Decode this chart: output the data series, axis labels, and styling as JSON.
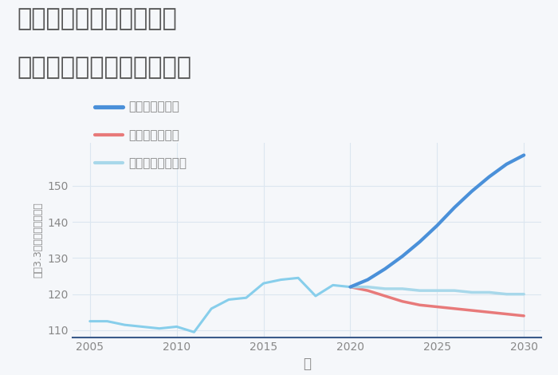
{
  "title_line1": "兵庫県姫路市飾磨区構の",
  "title_line2": "中古マンションの価格推移",
  "xlabel": "年",
  "ylabel": "坪（3.3㎡）単価（万円）",
  "xlim": [
    2004,
    2031
  ],
  "ylim": [
    108,
    162
  ],
  "yticks": [
    110,
    120,
    130,
    140,
    150
  ],
  "xticks": [
    2005,
    2010,
    2015,
    2020,
    2025,
    2030
  ],
  "bg_color": "#f5f7fa",
  "plot_bg_color": "#f5f7fa",
  "grid_color": "#dce6f0",
  "historical": {
    "years": [
      2005,
      2006,
      2007,
      2008,
      2009,
      2010,
      2011,
      2012,
      2013,
      2014,
      2015,
      2016,
      2017,
      2018,
      2019,
      2020
    ],
    "values": [
      112.5,
      112.5,
      111.5,
      111.0,
      110.5,
      111.0,
      109.5,
      116.0,
      118.5,
      119.0,
      123.0,
      124.0,
      124.5,
      119.5,
      122.5,
      122.0
    ],
    "color": "#87CEEB",
    "linewidth": 2.2
  },
  "good": {
    "years": [
      2020,
      2021,
      2022,
      2023,
      2024,
      2025,
      2026,
      2027,
      2028,
      2029,
      2030
    ],
    "values": [
      122.0,
      124.0,
      127.0,
      130.5,
      134.5,
      139.0,
      144.0,
      148.5,
      152.5,
      156.0,
      158.5
    ],
    "color": "#4a90d9",
    "linewidth": 3.0,
    "label": "グッドシナリオ"
  },
  "bad": {
    "years": [
      2020,
      2021,
      2022,
      2023,
      2024,
      2025,
      2026,
      2027,
      2028,
      2029,
      2030
    ],
    "values": [
      122.0,
      121.0,
      119.5,
      118.0,
      117.0,
      116.5,
      116.0,
      115.5,
      115.0,
      114.5,
      114.0
    ],
    "color": "#e87a7a",
    "linewidth": 2.5,
    "label": "バッドシナリオ"
  },
  "normal": {
    "years": [
      2020,
      2021,
      2022,
      2023,
      2024,
      2025,
      2026,
      2027,
      2028,
      2029,
      2030
    ],
    "values": [
      122.0,
      122.0,
      121.5,
      121.5,
      121.0,
      121.0,
      121.0,
      120.5,
      120.5,
      120.0,
      120.0
    ],
    "color": "#a8d8ea",
    "linewidth": 2.5,
    "label": "ノーマルシナリオ"
  },
  "title_color": "#555555",
  "title_fontsize": 22,
  "axis_label_color": "#888888",
  "tick_color": "#888888",
  "tick_fontsize": 10,
  "legend_fontsize": 11
}
